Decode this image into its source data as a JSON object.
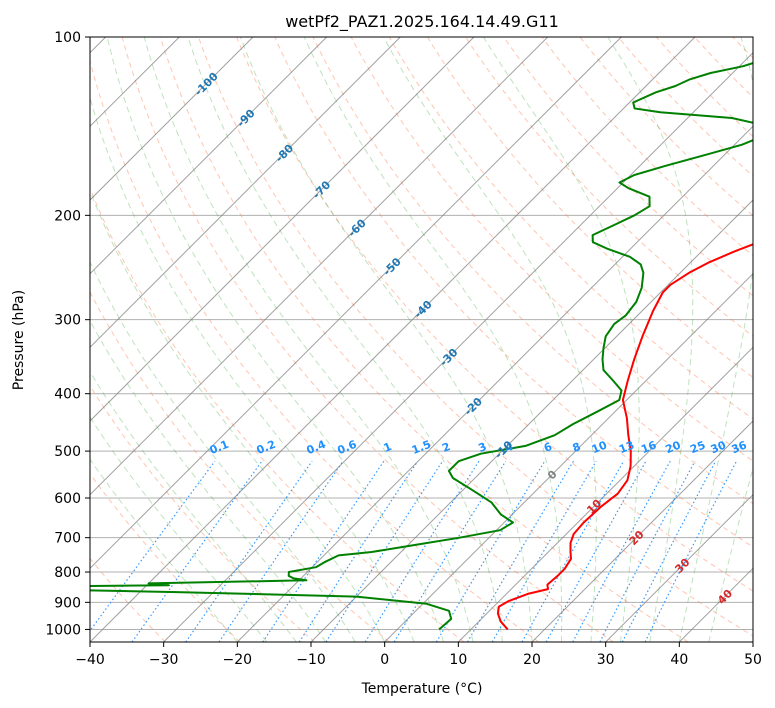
{
  "chart_data": {
    "type": "line",
    "subtype": "skew-t",
    "title": "wetPf2_PAZ1.2025.164.14.49.G11",
    "xlabel": "Temperature (°C)",
    "ylabel": "Pressure (hPa)",
    "xlim": [
      -40,
      50
    ],
    "ylim": [
      1050,
      100
    ],
    "y_scale": "log",
    "x_ticks": [
      -40,
      -30,
      -20,
      -10,
      0,
      10,
      20,
      30,
      40,
      50
    ],
    "y_ticks": [
      100,
      200,
      300,
      400,
      500,
      600,
      700,
      800,
      900,
      1000
    ],
    "grid": true,
    "colors": {
      "temperature": "#ff0000",
      "dewpoint": "#008000",
      "isotherm": "#808080",
      "dry_adiabat": "#ff7f50",
      "moist_adiabat": "#2ca02c",
      "mixing_ratio": "#1e90ff",
      "label_blue": "#1f77b4",
      "label_red": "#d62728"
    },
    "mixing_ratio_labels": [
      "0.1",
      "0.2",
      "0.4",
      "0.6",
      "1",
      "1.5",
      "2",
      "3",
      "4",
      "6",
      "8",
      "10",
      "13",
      "16",
      "20",
      "25",
      "30",
      "36"
    ],
    "isotherm_labels_blue": [
      "-100",
      "-90",
      "-80",
      "-70",
      "-60",
      "-50",
      "-40",
      "-30",
      "-20",
      "-10"
    ],
    "isotherm_label_gray": "0",
    "isotherm_labels_red": [
      "10",
      "20",
      "30",
      "40"
    ],
    "series": [
      {
        "name": "temperature",
        "points": [
          [
            1000,
            15.0
          ],
          [
            970,
            13.0
          ],
          [
            940,
            11.5
          ],
          [
            915,
            10.7
          ],
          [
            895,
            11.3
          ],
          [
            870,
            13.0
          ],
          [
            855,
            15.0
          ],
          [
            840,
            14.3
          ],
          [
            810,
            14.5
          ],
          [
            790,
            14.5
          ],
          [
            760,
            14.0
          ],
          [
            740,
            13.0
          ],
          [
            715,
            11.8
          ],
          [
            690,
            11.0
          ],
          [
            660,
            10.8
          ],
          [
            620,
            11.0
          ],
          [
            590,
            11.5
          ],
          [
            560,
            11.0
          ],
          [
            530,
            9.5
          ],
          [
            500,
            7.5
          ],
          [
            470,
            5.0
          ],
          [
            440,
            2.5
          ],
          [
            410,
            -0.5
          ],
          [
            380,
            -2.5
          ],
          [
            350,
            -4.5
          ],
          [
            320,
            -6.5
          ],
          [
            290,
            -8.5
          ],
          [
            270,
            -9.7
          ],
          [
            262,
            -9.7
          ],
          [
            250,
            -8.8
          ],
          [
            240,
            -7.5
          ],
          [
            230,
            -5.5
          ],
          [
            220,
            -3.0
          ],
          [
            210,
            -0.8
          ],
          [
            200,
            0.7
          ],
          [
            185,
            1.8
          ],
          [
            170,
            3.0
          ],
          [
            160,
            4.0
          ],
          [
            150,
            5.8
          ],
          [
            140,
            6.8
          ],
          [
            130,
            7.5
          ],
          [
            120,
            7.8
          ],
          [
            113,
            7.0
          ],
          [
            108,
            5.7
          ],
          [
            100,
            5.5
          ]
        ]
      },
      {
        "name": "dewpoint",
        "points": [
          [
            1000,
            5.7
          ],
          [
            960,
            5.9
          ],
          [
            930,
            4.5
          ],
          [
            905,
            0.5
          ],
          [
            880,
            -10.0
          ],
          [
            865,
            -35.0
          ],
          [
            855,
            -56.0
          ],
          [
            848,
            -60.0
          ],
          [
            842,
            -37.0
          ],
          [
            836,
            -40.0
          ],
          [
            826,
            -19.0
          ],
          [
            820,
            -21.0
          ],
          [
            812,
            -22.0
          ],
          [
            800,
            -22.5
          ],
          [
            785,
            -19.5
          ],
          [
            770,
            -19.0
          ],
          [
            750,
            -18.0
          ],
          [
            740,
            -14.0
          ],
          [
            720,
            -9.0
          ],
          [
            700,
            -4.0
          ],
          [
            680,
            0.5
          ],
          [
            660,
            1.2
          ],
          [
            640,
            -1.5
          ],
          [
            610,
            -4.5
          ],
          [
            580,
            -9.0
          ],
          [
            555,
            -13.0
          ],
          [
            540,
            -14.5
          ],
          [
            520,
            -14.5
          ],
          [
            505,
            -12.5
          ],
          [
            490,
            -7.5
          ],
          [
            470,
            -5.0
          ],
          [
            450,
            -4.0
          ],
          [
            430,
            -2.5
          ],
          [
            410,
            -1.0
          ],
          [
            395,
            -2.0
          ],
          [
            380,
            -4.5
          ],
          [
            365,
            -7.2
          ],
          [
            350,
            -8.8
          ],
          [
            335,
            -10.2
          ],
          [
            320,
            -11.5
          ],
          [
            305,
            -12.0
          ],
          [
            295,
            -11.6
          ],
          [
            280,
            -12.0
          ],
          [
            265,
            -13.2
          ],
          [
            250,
            -15.0
          ],
          [
            242,
            -16.5
          ],
          [
            235,
            -19.0
          ],
          [
            228,
            -23.0
          ],
          [
            222,
            -26.0
          ],
          [
            216,
            -27.0
          ],
          [
            208,
            -25.5
          ],
          [
            200,
            -24.0
          ],
          [
            193,
            -23.2
          ],
          [
            186,
            -24.5
          ],
          [
            180,
            -28.5
          ],
          [
            176,
            -30.5
          ],
          [
            171,
            -29.5
          ],
          [
            165,
            -26.5
          ],
          [
            158,
            -22.5
          ],
          [
            152,
            -19.0
          ],
          [
            146,
            -17.0
          ],
          [
            141,
            -18.5
          ],
          [
            137,
            -24.0
          ],
          [
            134,
            -34.5
          ],
          [
            132,
            -38.5
          ],
          [
            129,
            -39.5
          ],
          [
            124,
            -37.8
          ],
          [
            121,
            -36.0
          ],
          [
            118,
            -35.0
          ],
          [
            115,
            -33.0
          ],
          [
            112,
            -29.5
          ],
          [
            109,
            -27.5
          ],
          [
            106,
            -27.5
          ],
          [
            103,
            -28.5
          ],
          [
            100,
            -28.5
          ]
        ]
      }
    ]
  }
}
